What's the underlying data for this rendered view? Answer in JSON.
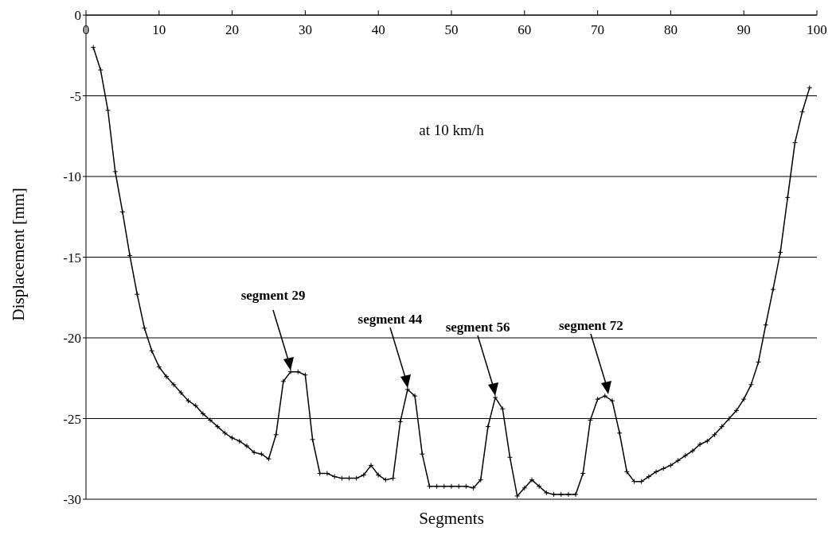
{
  "chart_data": {
    "type": "line",
    "xlabel": "Segments",
    "ylabel": "Displacement [mm]",
    "x": [
      1,
      2,
      3,
      4,
      5,
      6,
      7,
      8,
      9,
      10,
      11,
      12,
      13,
      14,
      15,
      16,
      17,
      18,
      19,
      20,
      21,
      22,
      23,
      24,
      25,
      26,
      27,
      28,
      29,
      30,
      31,
      32,
      33,
      34,
      35,
      36,
      37,
      38,
      39,
      40,
      41,
      42,
      43,
      44,
      45,
      46,
      47,
      48,
      49,
      50,
      51,
      52,
      53,
      54,
      55,
      56,
      57,
      58,
      59,
      60,
      61,
      62,
      63,
      64,
      65,
      66,
      67,
      68,
      69,
      70,
      71,
      72,
      73,
      74,
      75,
      76,
      77,
      78,
      79,
      80,
      81,
      82,
      83,
      84,
      85,
      86,
      87,
      88,
      89,
      90,
      91,
      92,
      93,
      94,
      95,
      96,
      97,
      98,
      99
    ],
    "series": [
      {
        "color": "#000000",
        "values": [
          -2.0,
          -3.4,
          -5.9,
          -9.7,
          -12.2,
          -14.9,
          -17.3,
          -19.4,
          -20.8,
          -21.8,
          -22.4,
          -22.9,
          -23.4,
          -23.9,
          -24.2,
          -24.7,
          -25.1,
          -25.5,
          -25.9,
          -26.2,
          -26.4,
          -26.7,
          -27.1,
          -27.2,
          -27.5,
          -26.0,
          -22.7,
          -22.1,
          -22.1,
          -22.3,
          -26.3,
          -28.4,
          -28.4,
          -28.6,
          -28.7,
          -28.7,
          -28.7,
          -28.5,
          -27.9,
          -28.5,
          -28.8,
          -28.7,
          -25.2,
          -23.2,
          -23.6,
          -27.2,
          -29.2,
          -29.2,
          -29.2,
          -29.2,
          -29.2,
          -29.2,
          -29.3,
          -28.8,
          -25.5,
          -23.7,
          -24.4,
          -27.4,
          -29.8,
          -29.3,
          -28.8,
          -29.2,
          -29.6,
          -29.7,
          -29.7,
          -29.7,
          -29.7,
          -28.4,
          -25.1,
          -23.8,
          -23.6,
          -23.9,
          -25.9,
          -28.3,
          -28.9,
          -28.9,
          -28.6,
          -28.3,
          -28.1,
          -27.9,
          -27.6,
          -27.3,
          -27.0,
          -26.6,
          -26.4,
          -26.0,
          -25.5,
          -25.0,
          -24.5,
          -23.8,
          -22.9,
          -21.5,
          -19.2,
          -17.0,
          -14.7,
          -11.3,
          -7.9,
          -6.0,
          -4.5
        ]
      }
    ],
    "xlim": [
      0,
      100
    ],
    "xticks": [
      0,
      10,
      20,
      30,
      40,
      50,
      60,
      70,
      80,
      90,
      100
    ],
    "ylim": [
      -30,
      0
    ],
    "yticks": [
      0,
      -5,
      -10,
      -15,
      -20,
      -25,
      -30
    ],
    "grid": "y",
    "marker": "cross",
    "line_style": "solid",
    "annotations": [
      "at 10 km/h",
      "segment 29",
      "segment 44",
      "segment 56",
      "segment 72"
    ]
  }
}
